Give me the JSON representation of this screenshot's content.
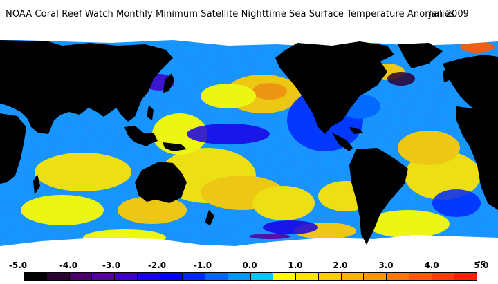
{
  "header": {
    "title": "NOAA Coral Reef Watch Monthly Minimum Satellite Nighttime Sea Surface Temperature Anomalies",
    "date": "Jan 2009"
  },
  "map": {
    "land_color": "#000000",
    "ice_color": "#ffffff"
  },
  "legend": {
    "labels": [
      "-5.0",
      "-4.0",
      "-3.0",
      "-2.0",
      "-1.0",
      "0.0",
      "1.0",
      "2.0",
      "3.0",
      "4.0",
      "5.0"
    ],
    "unit": "°C",
    "colors": [
      "#000000",
      "#2b0033",
      "#4b0069",
      "#55009a",
      "#4100c8",
      "#1a00e6",
      "#0000ff",
      "#0028ff",
      "#0064ff",
      "#0096ff",
      "#00c8ff",
      "#ffff00",
      "#ffe600",
      "#ffcc00",
      "#ffb400",
      "#ff9600",
      "#ff7800",
      "#ff5a00",
      "#ff3c00",
      "#ff1e00"
    ]
  }
}
